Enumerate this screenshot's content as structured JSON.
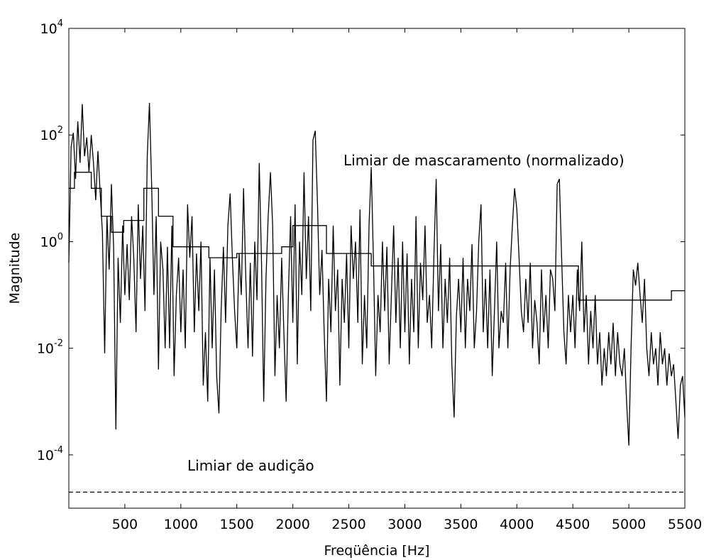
{
  "chart_data": {
    "type": "line",
    "title": "",
    "xlabel": "Freqüência [Hz]",
    "ylabel": "Magnitude",
    "xlim": [
      0,
      5500
    ],
    "ylim": [
      1e-05,
      10000
    ],
    "yscale": "log",
    "grid": false,
    "xticks": [
      500,
      1000,
      1500,
      2000,
      2500,
      3000,
      3500,
      4000,
      4500,
      5000,
      5500
    ],
    "xtick_labels": [
      "500",
      "1000",
      "1500",
      "2000",
      "2500",
      "3000",
      "3500",
      "4000",
      "4500",
      "5000",
      "5500"
    ],
    "yticks": [
      0.0001,
      0.01,
      1,
      100,
      10000
    ],
    "ytick_labels": [
      {
        "base": "10",
        "exp": "-4"
      },
      {
        "base": "10",
        "exp": "-2"
      },
      {
        "base": "10",
        "exp": "0"
      },
      {
        "base": "10",
        "exp": "2"
      },
      {
        "base": "10",
        "exp": "4"
      }
    ],
    "series": [
      {
        "style": "solid",
        "points": [
          [
            0,
            0.4
          ],
          [
            20,
            60
          ],
          [
            40,
            110
          ],
          [
            60,
            15
          ],
          [
            80,
            180
          ],
          [
            100,
            30
          ],
          [
            120,
            380
          ],
          [
            140,
            40
          ],
          [
            160,
            90
          ],
          [
            180,
            20
          ],
          [
            200,
            100
          ],
          [
            220,
            30
          ],
          [
            240,
            6
          ],
          [
            260,
            50
          ],
          [
            280,
            8
          ],
          [
            300,
            1.5
          ],
          [
            320,
            0.008
          ],
          [
            340,
            3
          ],
          [
            360,
            0.3
          ],
          [
            380,
            12
          ],
          [
            400,
            0.8
          ],
          [
            420,
            0.0003
          ],
          [
            440,
            0.5
          ],
          [
            460,
            0.03
          ],
          [
            480,
            2
          ],
          [
            500,
            0.1
          ],
          [
            520,
            0.9
          ],
          [
            540,
            0.08
          ],
          [
            560,
            3
          ],
          [
            580,
            0.5
          ],
          [
            600,
            0.02
          ],
          [
            620,
            5
          ],
          [
            640,
            0.2
          ],
          [
            660,
            2
          ],
          [
            680,
            0.05
          ],
          [
            700,
            40
          ],
          [
            720,
            400
          ],
          [
            740,
            10
          ],
          [
            760,
            0.1
          ],
          [
            780,
            3
          ],
          [
            800,
            0.004
          ],
          [
            820,
            1
          ],
          [
            840,
            0.3
          ],
          [
            860,
            0.01
          ],
          [
            880,
            0.8
          ],
          [
            900,
            0.01
          ],
          [
            920,
            2
          ],
          [
            940,
            0.003
          ],
          [
            960,
            0.1
          ],
          [
            980,
            0.5
          ],
          [
            1000,
            0.02
          ],
          [
            1020,
            0.3
          ],
          [
            1040,
            0.01
          ],
          [
            1060,
            5
          ],
          [
            1080,
            0.5
          ],
          [
            1100,
            3
          ],
          [
            1120,
            0.02
          ],
          [
            1140,
            0.6
          ],
          [
            1160,
            0.05
          ],
          [
            1180,
            1
          ],
          [
            1200,
            0.002
          ],
          [
            1220,
            0.02
          ],
          [
            1240,
            0.001
          ],
          [
            1260,
            0.5
          ],
          [
            1280,
            0.01
          ],
          [
            1300,
            0.3
          ],
          [
            1320,
            0.003
          ],
          [
            1340,
            0.0006
          ],
          [
            1360,
            0.05
          ],
          [
            1380,
            0.8
          ],
          [
            1400,
            0.03
          ],
          [
            1420,
            2
          ],
          [
            1440,
            8
          ],
          [
            1460,
            0.5
          ],
          [
            1480,
            0.05
          ],
          [
            1500,
            0.01
          ],
          [
            1520,
            0.6
          ],
          [
            1540,
            0.1
          ],
          [
            1560,
            10
          ],
          [
            1580,
            0.2
          ],
          [
            1600,
            0.01
          ],
          [
            1620,
            0.4
          ],
          [
            1640,
            0.007
          ],
          [
            1660,
            1
          ],
          [
            1680,
            0.08
          ],
          [
            1700,
            30
          ],
          [
            1720,
            0.5
          ],
          [
            1740,
            0.001
          ],
          [
            1760,
            0.2
          ],
          [
            1780,
            3
          ],
          [
            1800,
            20
          ],
          [
            1820,
            2
          ],
          [
            1840,
            0.003
          ],
          [
            1860,
            0.1
          ],
          [
            1880,
            0.01
          ],
          [
            1900,
            0.5
          ],
          [
            1920,
            0.02
          ],
          [
            1940,
            0.001
          ],
          [
            1960,
            0.1
          ],
          [
            1980,
            3
          ],
          [
            2000,
            0.03
          ],
          [
            2020,
            5
          ],
          [
            2040,
            0.005
          ],
          [
            2060,
            1
          ],
          [
            2080,
            0.1
          ],
          [
            2100,
            20
          ],
          [
            2120,
            0.2
          ],
          [
            2140,
            3
          ],
          [
            2160,
            0.05
          ],
          [
            2180,
            80
          ],
          [
            2200,
            120
          ],
          [
            2220,
            5
          ],
          [
            2240,
            0.1
          ],
          [
            2260,
            0.7
          ],
          [
            2280,
            0.02
          ],
          [
            2300,
            0.001
          ],
          [
            2320,
            0.2
          ],
          [
            2340,
            0.02
          ],
          [
            2360,
            2
          ],
          [
            2380,
            0.05
          ],
          [
            2400,
            0.3
          ],
          [
            2420,
            0.002
          ],
          [
            2440,
            0.2
          ],
          [
            2460,
            0.03
          ],
          [
            2480,
            0.6
          ],
          [
            2500,
            0.01
          ],
          [
            2520,
            2
          ],
          [
            2540,
            0.2
          ],
          [
            2560,
            1
          ],
          [
            2580,
            0.03
          ],
          [
            2600,
            4
          ],
          [
            2620,
            0.005
          ],
          [
            2640,
            0.1
          ],
          [
            2660,
            0.01
          ],
          [
            2680,
            2
          ],
          [
            2700,
            25
          ],
          [
            2720,
            0.4
          ],
          [
            2740,
            0.003
          ],
          [
            2760,
            0.1
          ],
          [
            2780,
            0.02
          ],
          [
            2800,
            1
          ],
          [
            2820,
            0.05
          ],
          [
            2840,
            0.8
          ],
          [
            2860,
            0.005
          ],
          [
            2880,
            0.1
          ],
          [
            2900,
            2
          ],
          [
            2920,
            0.03
          ],
          [
            2940,
            0.5
          ],
          [
            2960,
            0.01
          ],
          [
            2980,
            1
          ],
          [
            3000,
            0.02
          ],
          [
            3020,
            0.6
          ],
          [
            3040,
            0.005
          ],
          [
            3060,
            0.2
          ],
          [
            3080,
            0.02
          ],
          [
            3100,
            3
          ],
          [
            3120,
            0.01
          ],
          [
            3140,
            0.4
          ],
          [
            3160,
            0.08
          ],
          [
            3180,
            2
          ],
          [
            3200,
            0.03
          ],
          [
            3220,
            0.1
          ],
          [
            3240,
            0.01
          ],
          [
            3260,
            0.6
          ],
          [
            3280,
            15
          ],
          [
            3300,
            0.05
          ],
          [
            3320,
            0.9
          ],
          [
            3340,
            0.01
          ],
          [
            3360,
            0.2
          ],
          [
            3380,
            0.03
          ],
          [
            3400,
            0.5
          ],
          [
            3420,
            0.005
          ],
          [
            3440,
            0.0005
          ],
          [
            3460,
            0.04
          ],
          [
            3480,
            0.2
          ],
          [
            3500,
            0.02
          ],
          [
            3520,
            0.5
          ],
          [
            3540,
            0.01
          ],
          [
            3560,
            0.2
          ],
          [
            3580,
            0.05
          ],
          [
            3600,
            0.9
          ],
          [
            3620,
            0.01
          ],
          [
            3640,
            0.05
          ],
          [
            3660,
            1
          ],
          [
            3680,
            5
          ],
          [
            3700,
            0.02
          ],
          [
            3720,
            0.2
          ],
          [
            3740,
            0.01
          ],
          [
            3760,
            0.3
          ],
          [
            3780,
            0.003
          ],
          [
            3800,
            0.05
          ],
          [
            3820,
            1
          ],
          [
            3840,
            0.01
          ],
          [
            3860,
            0.05
          ],
          [
            3880,
            0.03
          ],
          [
            3900,
            0.4
          ],
          [
            3920,
            0.01
          ],
          [
            3940,
            0.3
          ],
          [
            3960,
            2
          ],
          [
            3980,
            10
          ],
          [
            4000,
            4
          ],
          [
            4020,
            0.5
          ],
          [
            4040,
            0.05
          ],
          [
            4060,
            0.02
          ],
          [
            4080,
            0.2
          ],
          [
            4100,
            0.03
          ],
          [
            4120,
            0.4
          ],
          [
            4140,
            0.01
          ],
          [
            4160,
            0.08
          ],
          [
            4180,
            0.03
          ],
          [
            4200,
            0.005
          ],
          [
            4220,
            0.3
          ],
          [
            4240,
            0.02
          ],
          [
            4260,
            0.1
          ],
          [
            4280,
            0.01
          ],
          [
            4300,
            0.3
          ],
          [
            4320,
            0.2
          ],
          [
            4340,
            0.05
          ],
          [
            4360,
            12
          ],
          [
            4380,
            15
          ],
          [
            4400,
            0.5
          ],
          [
            4420,
            0.02
          ],
          [
            4440,
            0.005
          ],
          [
            4460,
            0.1
          ],
          [
            4480,
            0.02
          ],
          [
            4500,
            0.1
          ],
          [
            4520,
            0.01
          ],
          [
            4540,
            0.3
          ],
          [
            4560,
            0.05
          ],
          [
            4580,
            1
          ],
          [
            4600,
            0.02
          ],
          [
            4620,
            0.1
          ],
          [
            4640,
            0.005
          ],
          [
            4660,
            0.05
          ],
          [
            4680,
            0.01
          ],
          [
            4700,
            0.1
          ],
          [
            4720,
            0.005
          ],
          [
            4740,
            0.02
          ],
          [
            4760,
            0.002
          ],
          [
            4780,
            0.01
          ],
          [
            4800,
            0.003
          ],
          [
            4820,
            0.02
          ],
          [
            4840,
            0.005
          ],
          [
            4860,
            0.03
          ],
          [
            4880,
            0.003
          ],
          [
            4900,
            0.02
          ],
          [
            4920,
            0.005
          ],
          [
            4940,
            0.003
          ],
          [
            4960,
            0.01
          ],
          [
            4980,
            0.001
          ],
          [
            5000,
            0.00015
          ],
          [
            5020,
            0.01
          ],
          [
            5040,
            0.3
          ],
          [
            5060,
            0.15
          ],
          [
            5080,
            0.4
          ],
          [
            5100,
            0.1
          ],
          [
            5120,
            0.03
          ],
          [
            5140,
            0.2
          ],
          [
            5160,
            0.01
          ],
          [
            5180,
            0.003
          ],
          [
            5200,
            0.02
          ],
          [
            5220,
            0.005
          ],
          [
            5240,
            0.01
          ],
          [
            5260,
            0.002
          ],
          [
            5280,
            0.02
          ],
          [
            5300,
            0.005
          ],
          [
            5320,
            0.01
          ],
          [
            5340,
            0.002
          ],
          [
            5360,
            0.008
          ],
          [
            5380,
            0.003
          ],
          [
            5400,
            0.005
          ],
          [
            5420,
            0.001
          ],
          [
            5440,
            0.0002
          ],
          [
            5460,
            0.002
          ],
          [
            5480,
            0.003
          ],
          [
            5500,
            0.0005
          ]
        ]
      },
      {
        "style": "solid",
        "points": [
          [
            0,
            10
          ],
          [
            50,
            10
          ],
          [
            50,
            20
          ],
          [
            200,
            20
          ],
          [
            200,
            10
          ],
          [
            290,
            10
          ],
          [
            290,
            3
          ],
          [
            380,
            3
          ],
          [
            380,
            1.5
          ],
          [
            490,
            1.5
          ],
          [
            490,
            2.5
          ],
          [
            670,
            2.5
          ],
          [
            670,
            10
          ],
          [
            800,
            10
          ],
          [
            800,
            3
          ],
          [
            930,
            3
          ],
          [
            930,
            0.8
          ],
          [
            1250,
            0.8
          ],
          [
            1250,
            0.5
          ],
          [
            1500,
            0.5
          ],
          [
            1500,
            0.6
          ],
          [
            1900,
            0.6
          ],
          [
            1900,
            0.8
          ],
          [
            2000,
            0.8
          ],
          [
            2000,
            2
          ],
          [
            2300,
            2
          ],
          [
            2300,
            0.6
          ],
          [
            2700,
            0.6
          ],
          [
            2700,
            0.35
          ],
          [
            4550,
            0.35
          ],
          [
            4550,
            0.08
          ],
          [
            5380,
            0.08
          ],
          [
            5380,
            0.12
          ],
          [
            5500,
            0.12
          ]
        ]
      },
      {
        "style": "dashed",
        "points": [
          [
            0,
            2e-05
          ],
          [
            5500,
            2e-05
          ]
        ]
      }
    ],
    "annotations": [
      "Limiar de mascaramento (normalizado)",
      "Limiar de audição"
    ]
  }
}
